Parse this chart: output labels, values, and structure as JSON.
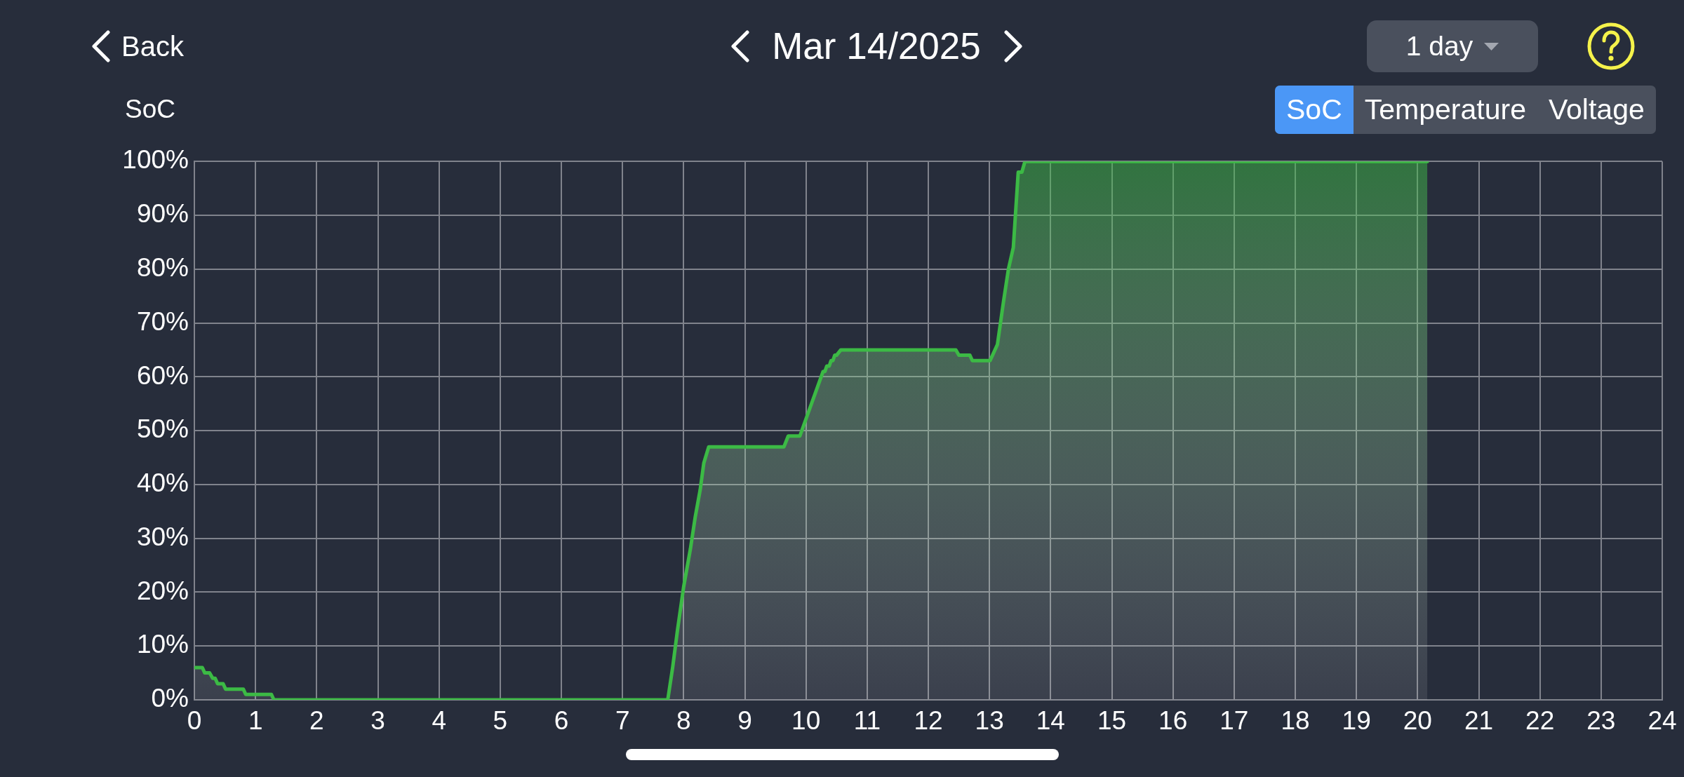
{
  "chart_data": {
    "type": "area",
    "title": "Mar 14/2025",
    "ylabel": "SoC",
    "annotations": [
      "Back",
      "1 day",
      "SoC",
      "Temperature",
      "Voltage"
    ],
    "x": [
      0,
      0.13,
      0.17,
      0.25,
      0.3,
      0.34,
      0.38,
      0.47,
      0.51,
      0.8,
      0.84,
      1.26,
      1.3,
      7.74,
      7.82,
      7.9,
      8.0,
      8.11,
      8.19,
      8.27,
      8.33,
      8.41,
      9.64,
      9.71,
      9.9,
      10.28,
      10.31,
      10.34,
      10.38,
      10.41,
      10.44,
      10.47,
      10.5,
      10.57,
      12.45,
      12.5,
      12.68,
      12.72,
      13.01,
      13.13,
      13.23,
      13.31,
      13.39,
      13.47,
      13.53,
      13.58,
      20.16
    ],
    "series": [
      {
        "color": "#3cba45",
        "values": [
          6,
          6,
          5,
          5,
          4,
          4,
          3,
          3,
          2,
          2,
          1,
          1,
          0,
          0,
          6,
          13,
          21,
          28,
          34,
          39,
          44,
          47,
          47,
          49,
          49,
          61,
          61,
          62,
          62,
          63,
          63,
          64,
          64,
          65,
          65,
          64,
          64,
          63,
          63,
          66,
          74,
          80,
          84,
          98,
          98,
          100,
          100
        ]
      }
    ],
    "xlim": [
      0,
      24
    ],
    "xticks": [
      0,
      1,
      2,
      3,
      4,
      5,
      6,
      7,
      8,
      9,
      10,
      11,
      12,
      13,
      14,
      15,
      16,
      17,
      18,
      19,
      20,
      21,
      22,
      23,
      24
    ],
    "ylim": [
      0,
      100
    ],
    "yticks": [
      {
        "value": 0,
        "label": "0%"
      },
      {
        "value": 10,
        "label": "10%"
      },
      {
        "value": 20,
        "label": "20%"
      },
      {
        "value": 30,
        "label": "30%"
      },
      {
        "value": 40,
        "label": "40%"
      },
      {
        "value": 50,
        "label": "50%"
      },
      {
        "value": 60,
        "label": "60%"
      },
      {
        "value": 70,
        "label": "70%"
      },
      {
        "value": 80,
        "label": "80%"
      },
      {
        "value": 90,
        "label": "90%"
      },
      {
        "value": 100,
        "label": "100%"
      }
    ],
    "grid": true
  }
}
